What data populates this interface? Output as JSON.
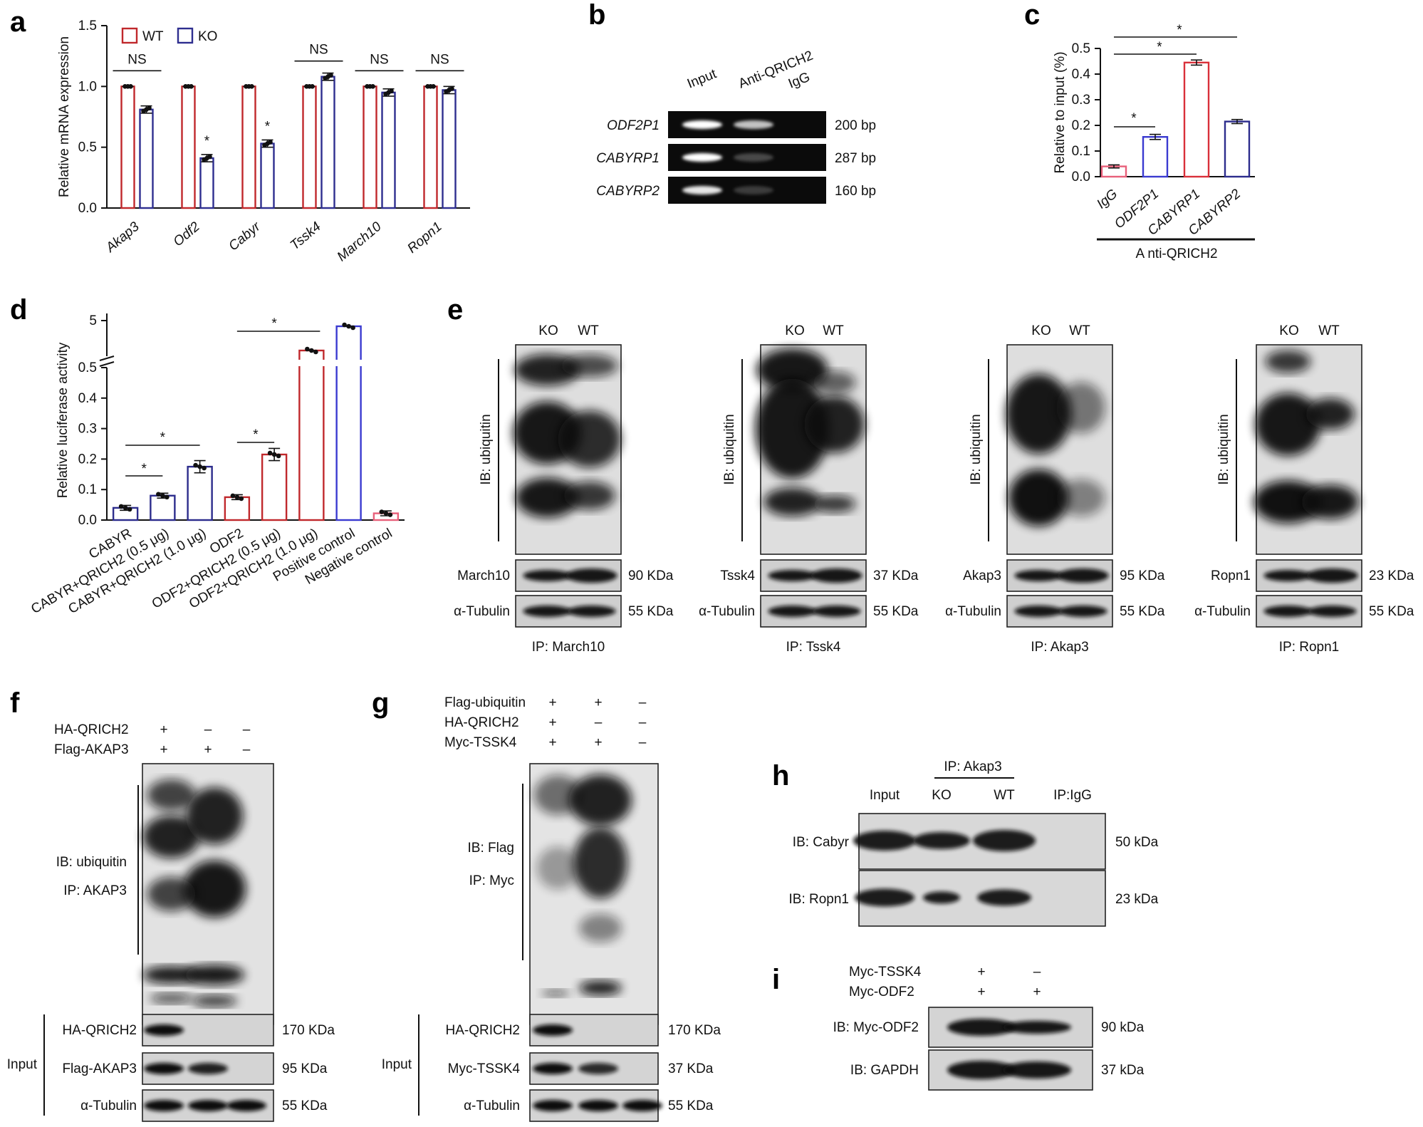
{
  "figure": {
    "panels": {
      "a": {
        "letter": "a"
      },
      "b": {
        "letter": "b"
      },
      "c": {
        "letter": "c"
      },
      "d": {
        "letter": "d"
      },
      "e": {
        "letter": "e"
      },
      "f": {
        "letter": "f"
      },
      "g": {
        "letter": "g"
      },
      "h": {
        "letter": "h"
      },
      "i": {
        "letter": "i"
      }
    },
    "b_gel": {
      "lanes": [
        "Input",
        "Anti-QRICH2",
        "IgG"
      ],
      "rows": [
        {
          "label": "ODF2P1",
          "size": "200 bp",
          "bands": [
            1.0,
            0.75,
            0
          ]
        },
        {
          "label": "CABYRP1",
          "size": "287 bp",
          "bands": [
            1.0,
            0.25,
            0
          ]
        },
        {
          "label": "CABYRP2",
          "size": "160 bp",
          "bands": [
            0.9,
            0.2,
            0
          ]
        }
      ]
    },
    "e_blots": [
      {
        "lanes": [
          "KO",
          "WT"
        ],
        "ib": "IB: ubiquitin",
        "protein": "March10",
        "protein_kda": "90 KDa",
        "tubulin": "α-Tubulin",
        "tubulin_kda": "55 KDa",
        "ip": "IP: March10"
      },
      {
        "lanes": [
          "KO",
          "WT"
        ],
        "ib": "IB: ubiquitin",
        "protein": "Tssk4",
        "protein_kda": "37 KDa",
        "tubulin": "α-Tubulin",
        "tubulin_kda": "55 KDa",
        "ip": "IP: Tssk4"
      },
      {
        "lanes": [
          "KO",
          "WT"
        ],
        "ib": "IB: ubiquitin",
        "protein": "Akap3",
        "protein_kda": "95 KDa",
        "tubulin": "α-Tubulin",
        "tubulin_kda": "55 KDa",
        "ip": "IP: Akap3"
      },
      {
        "lanes": [
          "KO",
          "WT"
        ],
        "ib": "IB: ubiquitin",
        "protein": "Ropn1",
        "protein_kda": "23 KDa",
        "tubulin": "α-Tubulin",
        "tubulin_kda": "55 KDa",
        "ip": "IP: Ropn1"
      }
    ],
    "f_blot": {
      "conditions": [
        {
          "name": "HA-QRICH2",
          "signs": [
            "+",
            "–",
            "–"
          ]
        },
        {
          "name": "Flag-AKAP3",
          "signs": [
            "+",
            "+",
            "–"
          ]
        }
      ],
      "ib": "IB: ubiquitin",
      "ip": "IP: AKAP3",
      "input_label": "Input",
      "inputs": [
        {
          "name": "HA-QRICH2",
          "kda": "170 KDa"
        },
        {
          "name": "Flag-AKAP3",
          "kda": "95 KDa"
        },
        {
          "name": "α-Tubulin",
          "kda": "55 KDa"
        }
      ]
    },
    "g_blot": {
      "conditions": [
        {
          "name": "Flag-ubiquitin",
          "signs": [
            "+",
            "+",
            "–"
          ]
        },
        {
          "name": "HA-QRICH2",
          "signs": [
            "+",
            "–",
            "–"
          ]
        },
        {
          "name": "Myc-TSSK4",
          "signs": [
            "+",
            "+",
            "–"
          ]
        }
      ],
      "ib": "IB: Flag",
      "ip": "IP: Myc",
      "input_label": "Input",
      "inputs": [
        {
          "name": "HA-QRICH2",
          "kda": "170 KDa"
        },
        {
          "name": "Myc-TSSK4",
          "kda": "37 KDa"
        },
        {
          "name": "α-Tubulin",
          "kda": "55 KDa"
        }
      ]
    },
    "h_blot": {
      "ip_label": "IP: Akap3",
      "lanes": [
        "Input",
        "KO",
        "WT",
        "IP:IgG"
      ],
      "rows": [
        {
          "name": "IB: Cabyr",
          "kda": "50 kDa"
        },
        {
          "name": "IB: Ropn1",
          "kda": "23 kDa"
        }
      ]
    },
    "i_blot": {
      "conditions": [
        {
          "name": "Myc-TSSK4",
          "signs": [
            "+",
            "–"
          ]
        },
        {
          "name": "Myc-ODF2",
          "signs": [
            "+",
            "+"
          ]
        }
      ],
      "rows": [
        {
          "name": "IB: Myc-ODF2",
          "kda": "90 kDa"
        },
        {
          "name": "IB: GAPDH",
          "kda": "37 kDa"
        }
      ]
    }
  },
  "chart_data": [
    {
      "id": "a",
      "type": "bar",
      "categories": [
        "Akap3",
        "Odf2",
        "Cabyr",
        "Tssk4",
        "March10",
        "Ropn1"
      ],
      "series": [
        {
          "name": "WT",
          "values": [
            1.0,
            1.0,
            1.0,
            1.0,
            1.0,
            1.0
          ]
        },
        {
          "name": "KO",
          "values": [
            0.81,
            0.41,
            0.53,
            1.08,
            0.95,
            0.97
          ]
        }
      ],
      "ylabel": "Relative mRNA expression",
      "ylim": [
        0,
        1.5
      ],
      "yticks": [
        "0.0",
        "0.5",
        "1.0",
        "1.5"
      ],
      "annotations": [
        "NS",
        "*",
        "*",
        "NS",
        "NS",
        "NS"
      ],
      "colors": {
        "WT": "#c0282c",
        "KO": "#2e2e8f"
      },
      "legend": "top-left"
    },
    {
      "id": "c",
      "type": "bar",
      "categories": [
        "IgG",
        "ODF2P1",
        "CABYRP1",
        "CABYRP2"
      ],
      "values": [
        0.04,
        0.155,
        0.445,
        0.215
      ],
      "ylabel": "Relative to input (%)",
      "ylim": [
        0,
        0.5
      ],
      "yticks": [
        "0.0",
        "0.1",
        "0.2",
        "0.3",
        "0.4",
        "0.5"
      ],
      "group_label": "A nti-QRICH2",
      "sig_marks": [
        "*",
        "*",
        "*"
      ],
      "colors": [
        "#e8607a",
        "#3a3ad0",
        "#d9303a",
        "#2c2c8c"
      ]
    },
    {
      "id": "d",
      "type": "bar",
      "categories": [
        "CABYR",
        "CABYR+QRICH2 (0.5 μg)",
        "CABYR+QRICH2 (1.0 μg)",
        "ODF2",
        "ODF2+QRICH2 (0.5 μg)",
        "ODF2+QRICH2 (1.0 μg)",
        "Positive control",
        "Negative control"
      ],
      "values": [
        0.04,
        0.08,
        0.175,
        0.075,
        0.215,
        1.2,
        4.5,
        0.022
      ],
      "ylabel": "Relative luciferase activity",
      "yticks": [
        "0.0",
        "0.1",
        "0.2",
        "0.3",
        "0.4",
        "0.5",
        "5"
      ],
      "sig_marks": [
        "*",
        "*",
        "*",
        "*"
      ],
      "colors": [
        "#2c2c8c",
        "#2c2c8c",
        "#2c2c8c",
        "#c0282c",
        "#c0282c",
        "#c0282c",
        "#3a3ad0",
        "#e8607a"
      ]
    }
  ]
}
